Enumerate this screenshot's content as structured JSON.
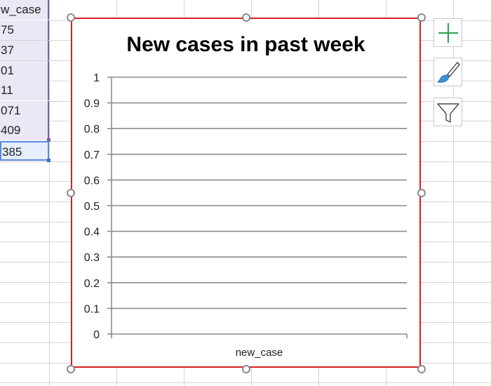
{
  "sheet": {
    "header_partial": "w_case",
    "cells": [
      "75",
      "37",
      "01",
      "11",
      "071",
      "409"
    ],
    "active_cell": "385"
  },
  "chart": {
    "colors": {
      "border": "#d6201f",
      "grid": "#8c8c8c"
    },
    "icons": [
      "add-chart-element-icon",
      "chart-styles-brush-icon",
      "chart-filters-funnel-icon"
    ]
  },
  "chart_data": {
    "type": "bar",
    "title": "New cases in past week",
    "categories": [
      "new_case"
    ],
    "series": [],
    "yticks": [
      "0",
      "0.1",
      "0.2",
      "0.3",
      "0.4",
      "0.5",
      "0.6",
      "0.7",
      "0.8",
      "0.9",
      "1"
    ],
    "ylim": [
      0,
      1
    ],
    "grid": true
  }
}
